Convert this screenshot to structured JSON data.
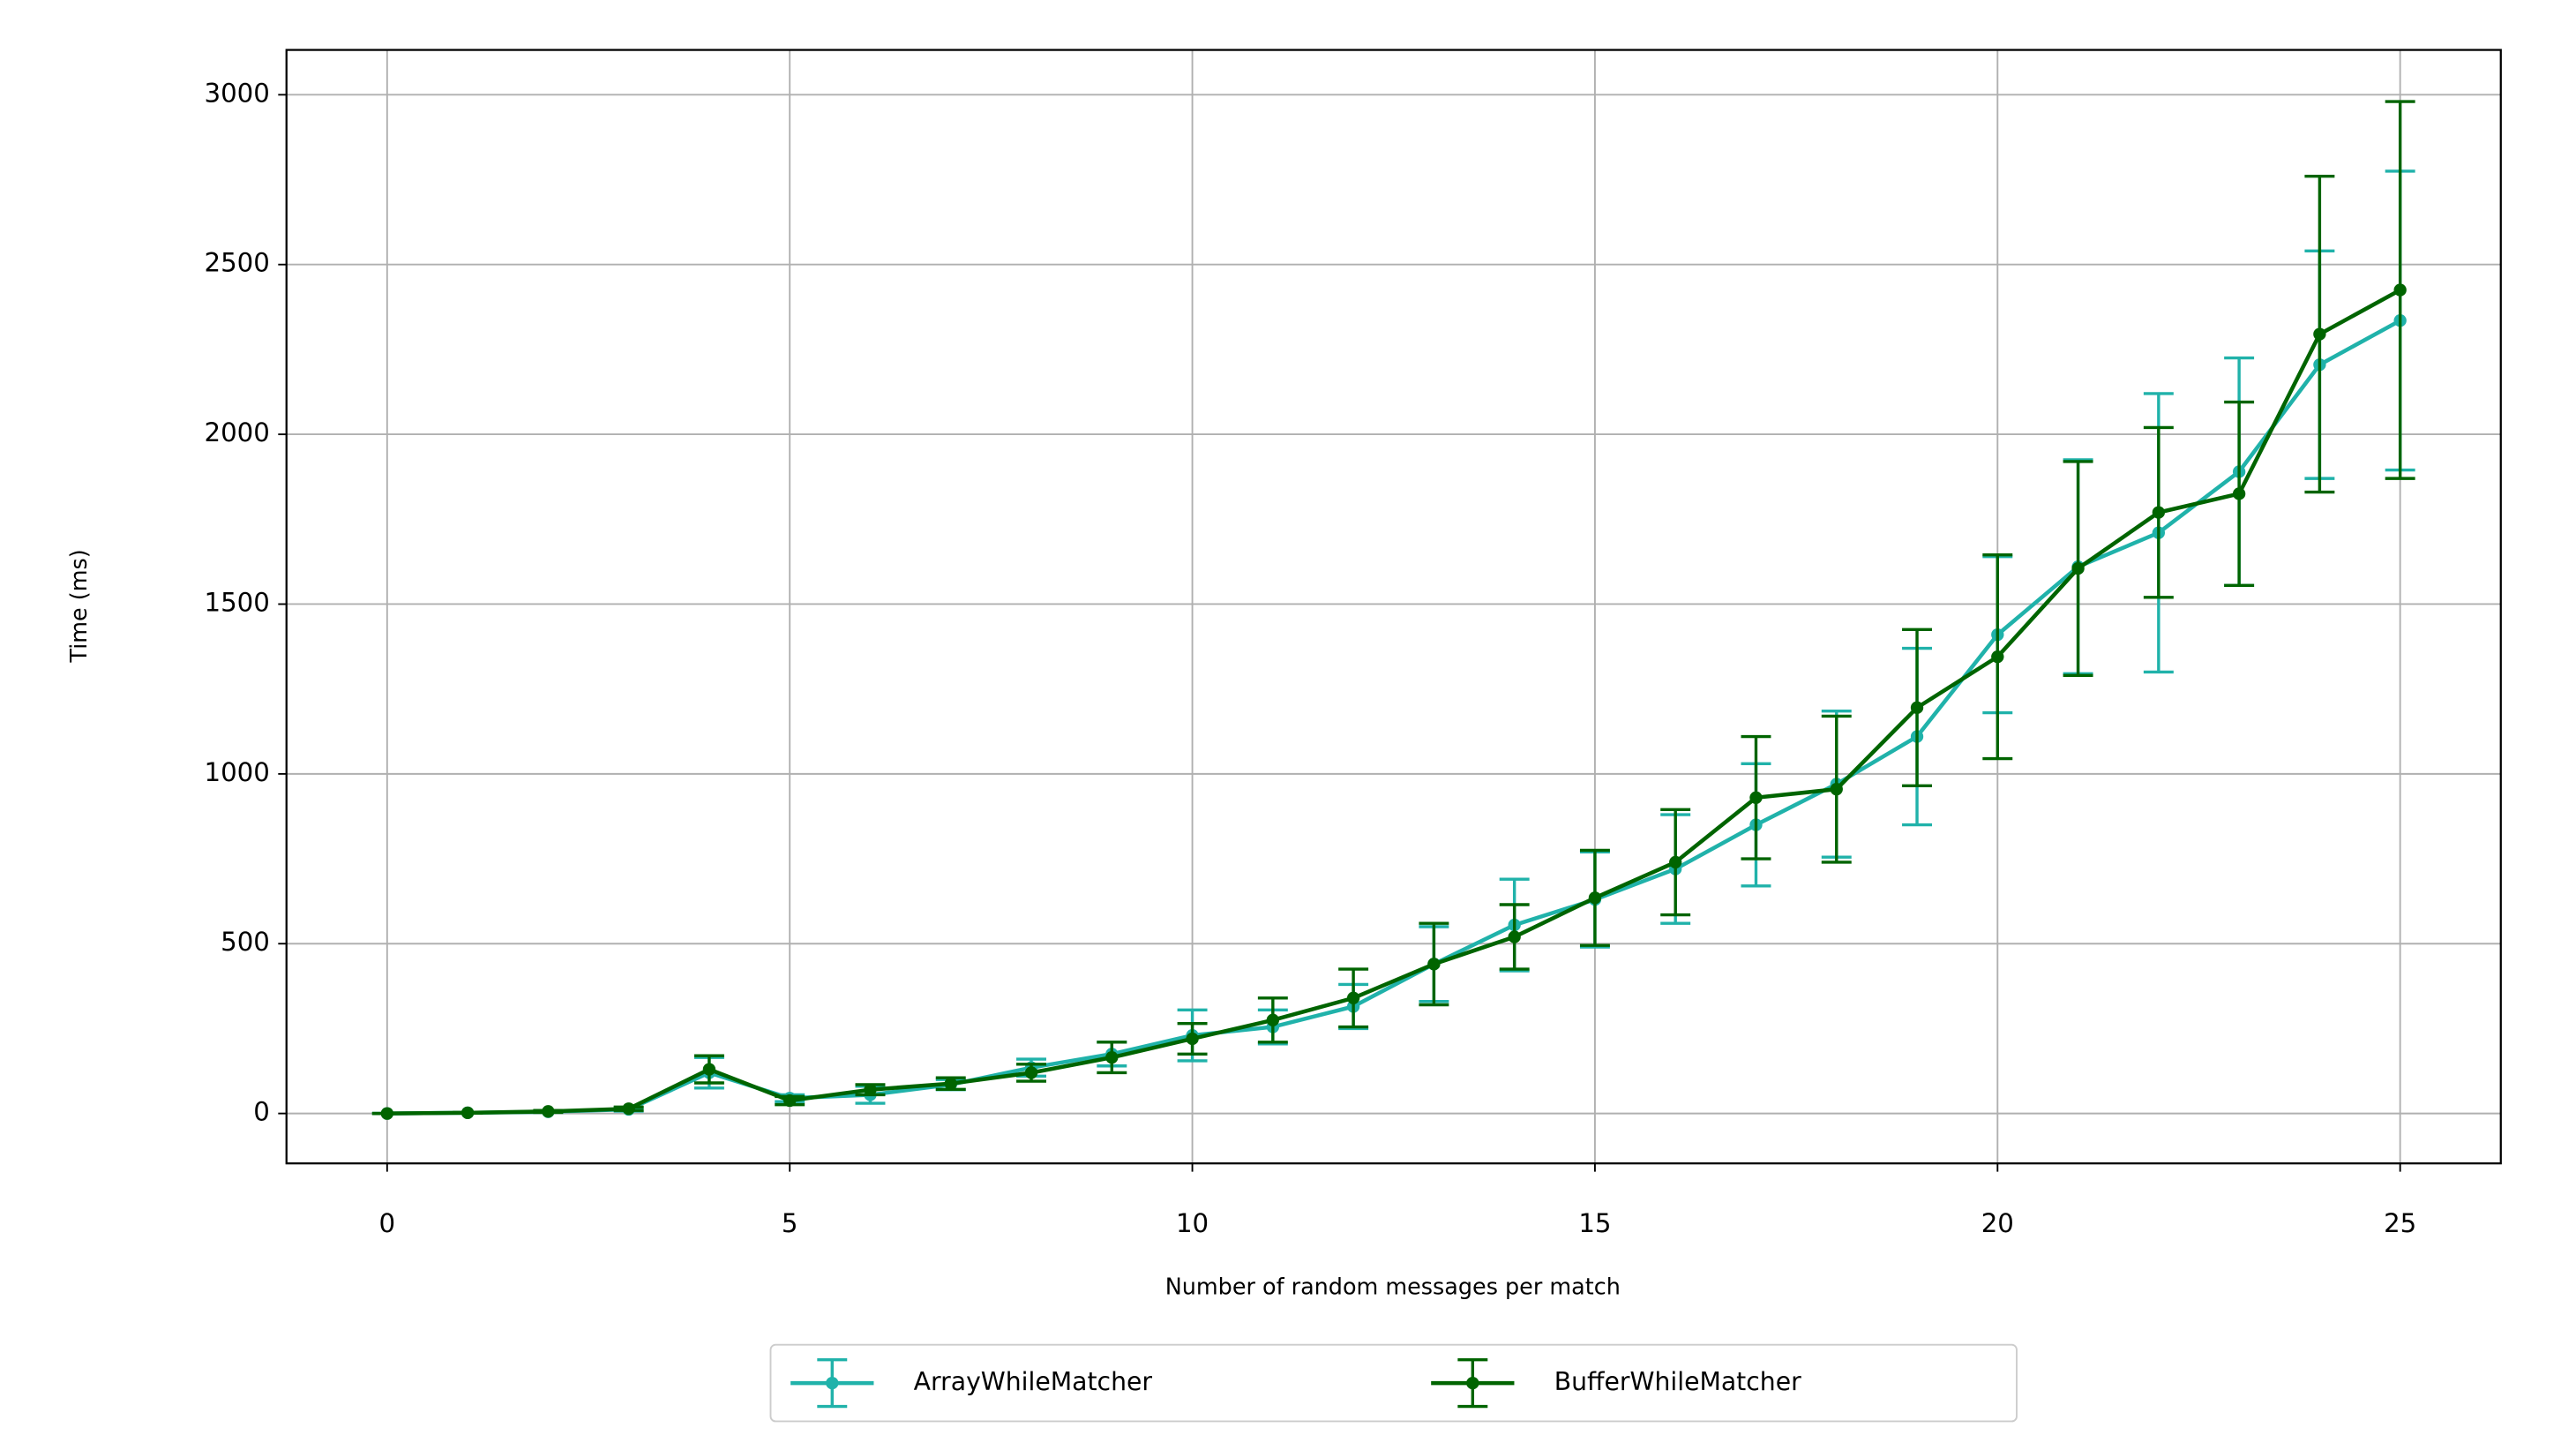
{
  "chart_data": {
    "type": "errorbar-line",
    "xlabel": "Number of random messages per match",
    "ylabel": "Time (ms)",
    "x": [
      0,
      1,
      2,
      3,
      4,
      5,
      6,
      7,
      8,
      9,
      10,
      11,
      12,
      13,
      14,
      15,
      16,
      17,
      18,
      19,
      20,
      21,
      22,
      23,
      24,
      25
    ],
    "series": [
      {
        "name": "ArrayWhileMatcher",
        "color": "#20b2aa",
        "values": [
          0,
          2,
          5,
          12,
          120,
          45,
          55,
          85,
          135,
          175,
          230,
          255,
          315,
          440,
          555,
          630,
          720,
          850,
          970,
          1110,
          1410,
          1610,
          1710,
          1890,
          2205,
          2335
        ],
        "errors": [
          0,
          1,
          2,
          5,
          45,
          10,
          25,
          15,
          25,
          35,
          75,
          50,
          65,
          110,
          135,
          140,
          160,
          180,
          215,
          260,
          230,
          315,
          410,
          335,
          335,
          440
        ]
      },
      {
        "name": "BufferWhileMatcher",
        "color": "#006400",
        "values": [
          0,
          2,
          6,
          14,
          130,
          38,
          70,
          88,
          120,
          165,
          220,
          275,
          340,
          440,
          520,
          635,
          740,
          930,
          955,
          1195,
          1345,
          1605,
          1770,
          1825,
          2295,
          2425
        ],
        "errors": [
          0,
          1,
          3,
          5,
          40,
          12,
          15,
          17,
          25,
          45,
          45,
          65,
          85,
          120,
          95,
          140,
          155,
          180,
          215,
          230,
          300,
          315,
          250,
          270,
          465,
          555
        ]
      }
    ],
    "xlim": [
      -1.25,
      26.25
    ],
    "ylim": [
      -147,
      3132
    ],
    "xticks": [
      0,
      5,
      10,
      15,
      20,
      25
    ],
    "yticks": [
      0,
      500,
      1000,
      1500,
      2000,
      2500,
      3000
    ],
    "grid": true,
    "legend": "below"
  }
}
